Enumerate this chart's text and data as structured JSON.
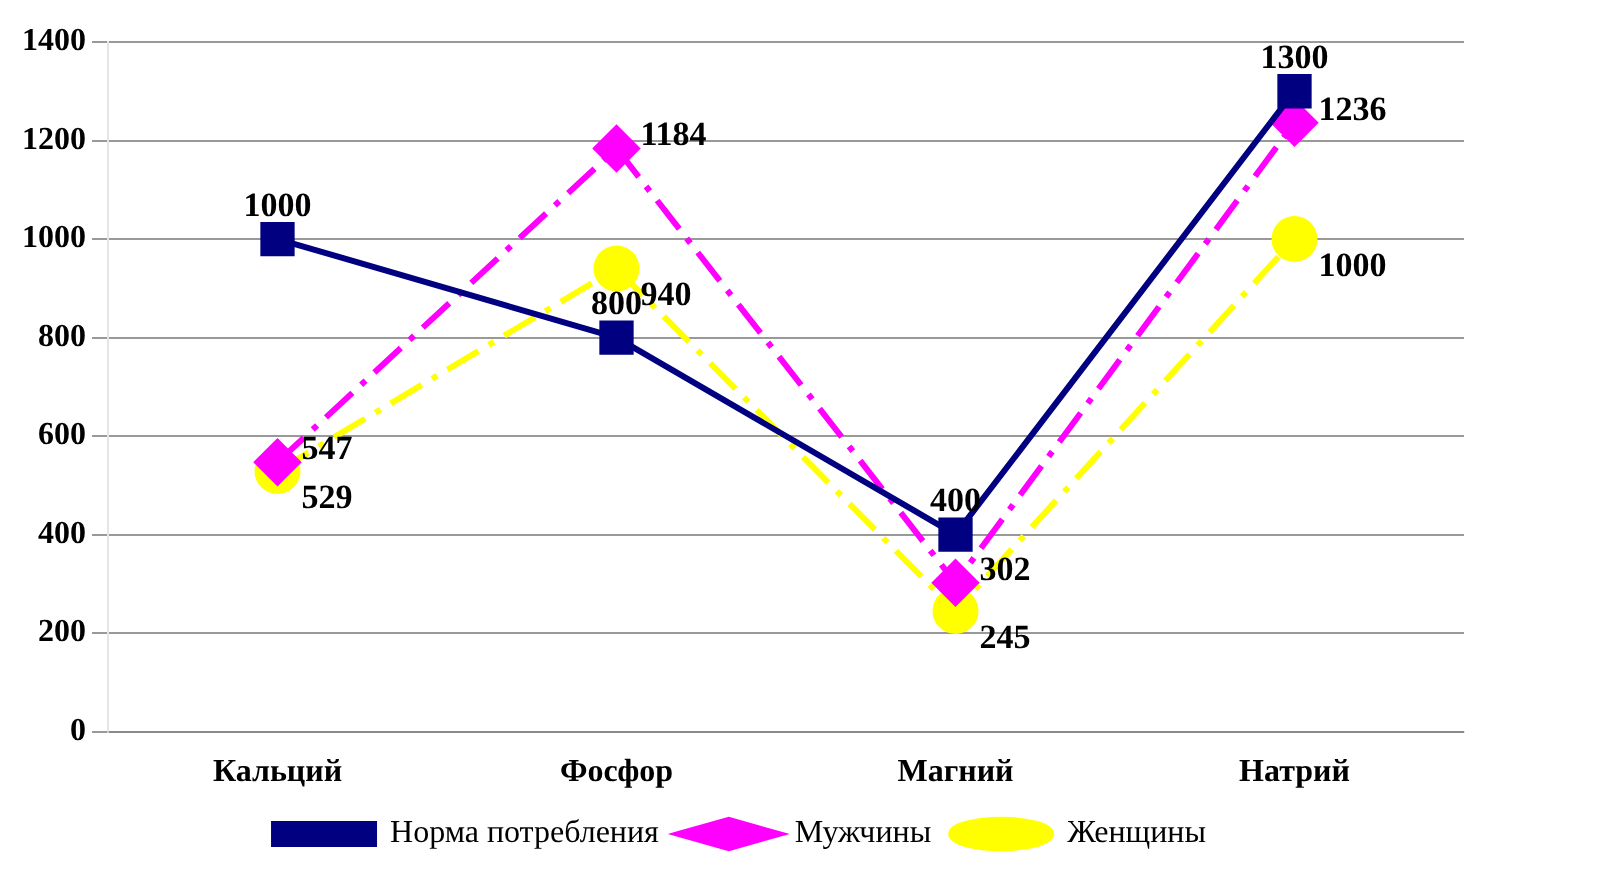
{
  "chart_data": {
    "type": "line",
    "categories": [
      "Кальций",
      "Фосфор",
      "Магний",
      "Натрий"
    ],
    "series": [
      {
        "name": "Норма потребления",
        "color": "#000080",
        "values": [
          1000,
          800,
          400,
          1300
        ],
        "marker": "square",
        "line_style": "solid"
      },
      {
        "name": "Мужчины",
        "color": "#ff00ff",
        "values": [
          547,
          1184,
          302,
          1236
        ],
        "marker": "diamond",
        "line_style": "dashed"
      },
      {
        "name": "Женщины",
        "color": "#ffff00",
        "values": [
          529,
          940,
          245,
          1000
        ],
        "marker": "circle",
        "line_style": "dashed"
      }
    ],
    "ylim": [
      0,
      1400
    ],
    "yticks": [
      0,
      200,
      400,
      600,
      800,
      1000,
      1200,
      1400
    ],
    "grid": "y",
    "legend": "bottom",
    "data_labels": true
  }
}
